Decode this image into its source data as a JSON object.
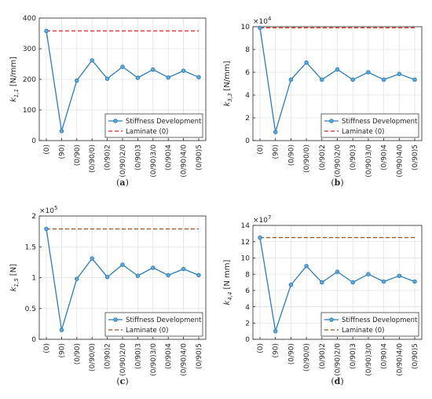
{
  "colors": {
    "series": "#2e7dbb",
    "marker_fill": "#5fa8d8",
    "laminate_red": "#e8231f",
    "laminate_brown": "#a04a20",
    "grid": "#e3e3e3",
    "axis": "#262626"
  },
  "chart_data": [
    {
      "panel": "(a)",
      "type": "line",
      "ylabel_main": "k",
      "ylabel_sub": "1,1",
      "ylabel_unit": "[N/mm]",
      "exponent": "",
      "ylim": [
        0,
        400
      ],
      "yticks": [
        "0",
        "100",
        "200",
        "300",
        "400"
      ],
      "ytick_values": [
        0,
        100,
        200,
        300,
        400
      ],
      "categories": [
        "(0)",
        "(90)",
        "(0/90)",
        "(0/90/0)",
        "(0/90)2",
        "(0/90)2/0",
        "(0/90)3",
        "(0/90)3/0",
        "(0/90)4",
        "(0/90)4/0",
        "(0/90)5"
      ],
      "series": [
        {
          "name": "Stiffness Development",
          "values": [
            358,
            31,
            196,
            262,
            202,
            241,
            205,
            232,
            206,
            228,
            207
          ]
        },
        {
          "name": "Laminate (0)",
          "values": [
            358,
            358,
            358,
            358,
            358,
            358,
            358,
            358,
            358,
            358,
            358
          ]
        }
      ],
      "laminate_color": "red",
      "legend": "bottom-right",
      "grid": true,
      "caption_label": "a"
    },
    {
      "panel": "(b)",
      "type": "line",
      "ylabel_main": "k",
      "ylabel_sub": "3,3",
      "ylabel_unit": "[N/mm]",
      "exponent": "4",
      "ylim": [
        0,
        10
      ],
      "yticks": [
        "0",
        "2",
        "4",
        "6",
        "8",
        "10"
      ],
      "ytick_values": [
        0,
        2,
        4,
        6,
        8,
        10
      ],
      "categories": [
        "(0)",
        "(90)",
        "(0/90)",
        "(0/90/0)",
        "(0/90)2",
        "(0/90)2/0",
        "(0/90)3",
        "(0/90)3/0",
        "(0/90)4",
        "(0/90)4/0",
        "(0/90)5"
      ],
      "series": [
        {
          "name": "Stiffness Development",
          "values": [
            9.9,
            0.75,
            5.35,
            6.85,
            5.35,
            6.25,
            5.35,
            6.0,
            5.35,
            5.85,
            5.35
          ]
        },
        {
          "name": "Laminate (0)",
          "values": [
            9.9,
            9.9,
            9.9,
            9.9,
            9.9,
            9.9,
            9.9,
            9.9,
            9.9,
            9.9,
            9.9
          ]
        }
      ],
      "laminate_color": "red",
      "legend": "bottom-right",
      "grid": true,
      "caption_label": "b"
    },
    {
      "panel": "(c)",
      "type": "line",
      "ylabel_main": "k",
      "ylabel_sub": "1,5",
      "ylabel_unit": "[N]",
      "exponent": "5",
      "ylim": [
        0,
        2
      ],
      "yticks": [
        "0",
        "0.5",
        "1",
        "1.5",
        "2"
      ],
      "ytick_values": [
        0,
        0.5,
        1,
        1.5,
        2
      ],
      "categories": [
        "(0)",
        "(90)",
        "(0/90)",
        "(0/90/0)",
        "(0/90)2",
        "(0/90)2/0",
        "(0/90)3",
        "(0/90)3/0",
        "(0/90)4",
        "(0/90)4/0",
        "(0/90)5"
      ],
      "series": [
        {
          "name": "Stiffness Development",
          "values": [
            1.79,
            0.15,
            0.98,
            1.31,
            1.01,
            1.21,
            1.03,
            1.16,
            1.04,
            1.14,
            1.04
          ]
        },
        {
          "name": "Laminate (0)",
          "values": [
            1.79,
            1.79,
            1.79,
            1.79,
            1.79,
            1.79,
            1.79,
            1.79,
            1.79,
            1.79,
            1.79
          ]
        }
      ],
      "laminate_color": "brown",
      "legend": "bottom-right",
      "grid": true,
      "caption_label": "c"
    },
    {
      "panel": "(d)",
      "type": "line",
      "ylabel_main": "k",
      "ylabel_sub": "4,4",
      "ylabel_unit": "[N mm]",
      "exponent": "7",
      "ylim": [
        0,
        14
      ],
      "yticks": [
        "0",
        "2",
        "4",
        "6",
        "8",
        "10",
        "12",
        "14"
      ],
      "ytick_values": [
        0,
        2,
        4,
        6,
        8,
        10,
        12,
        14
      ],
      "categories": [
        "(0)",
        "(90)",
        "(0/90)",
        "(0/90/0)",
        "(0/90)2",
        "(0/90)2/0",
        "(0/90)3",
        "(0/90)3/0",
        "(0/90)4",
        "(0/90)4/0",
        "(0/90)5"
      ],
      "series": [
        {
          "name": "Stiffness Development",
          "values": [
            12.5,
            1.0,
            6.7,
            9.0,
            7.0,
            8.3,
            7.0,
            8.0,
            7.1,
            7.8,
            7.1
          ]
        },
        {
          "name": "Laminate (0)",
          "values": [
            12.5,
            12.5,
            12.5,
            12.5,
            12.5,
            12.5,
            12.5,
            12.5,
            12.5,
            12.5,
            12.5
          ]
        }
      ],
      "laminate_color": "brown",
      "legend": "bottom-right",
      "grid": true,
      "caption_label": "d"
    }
  ]
}
